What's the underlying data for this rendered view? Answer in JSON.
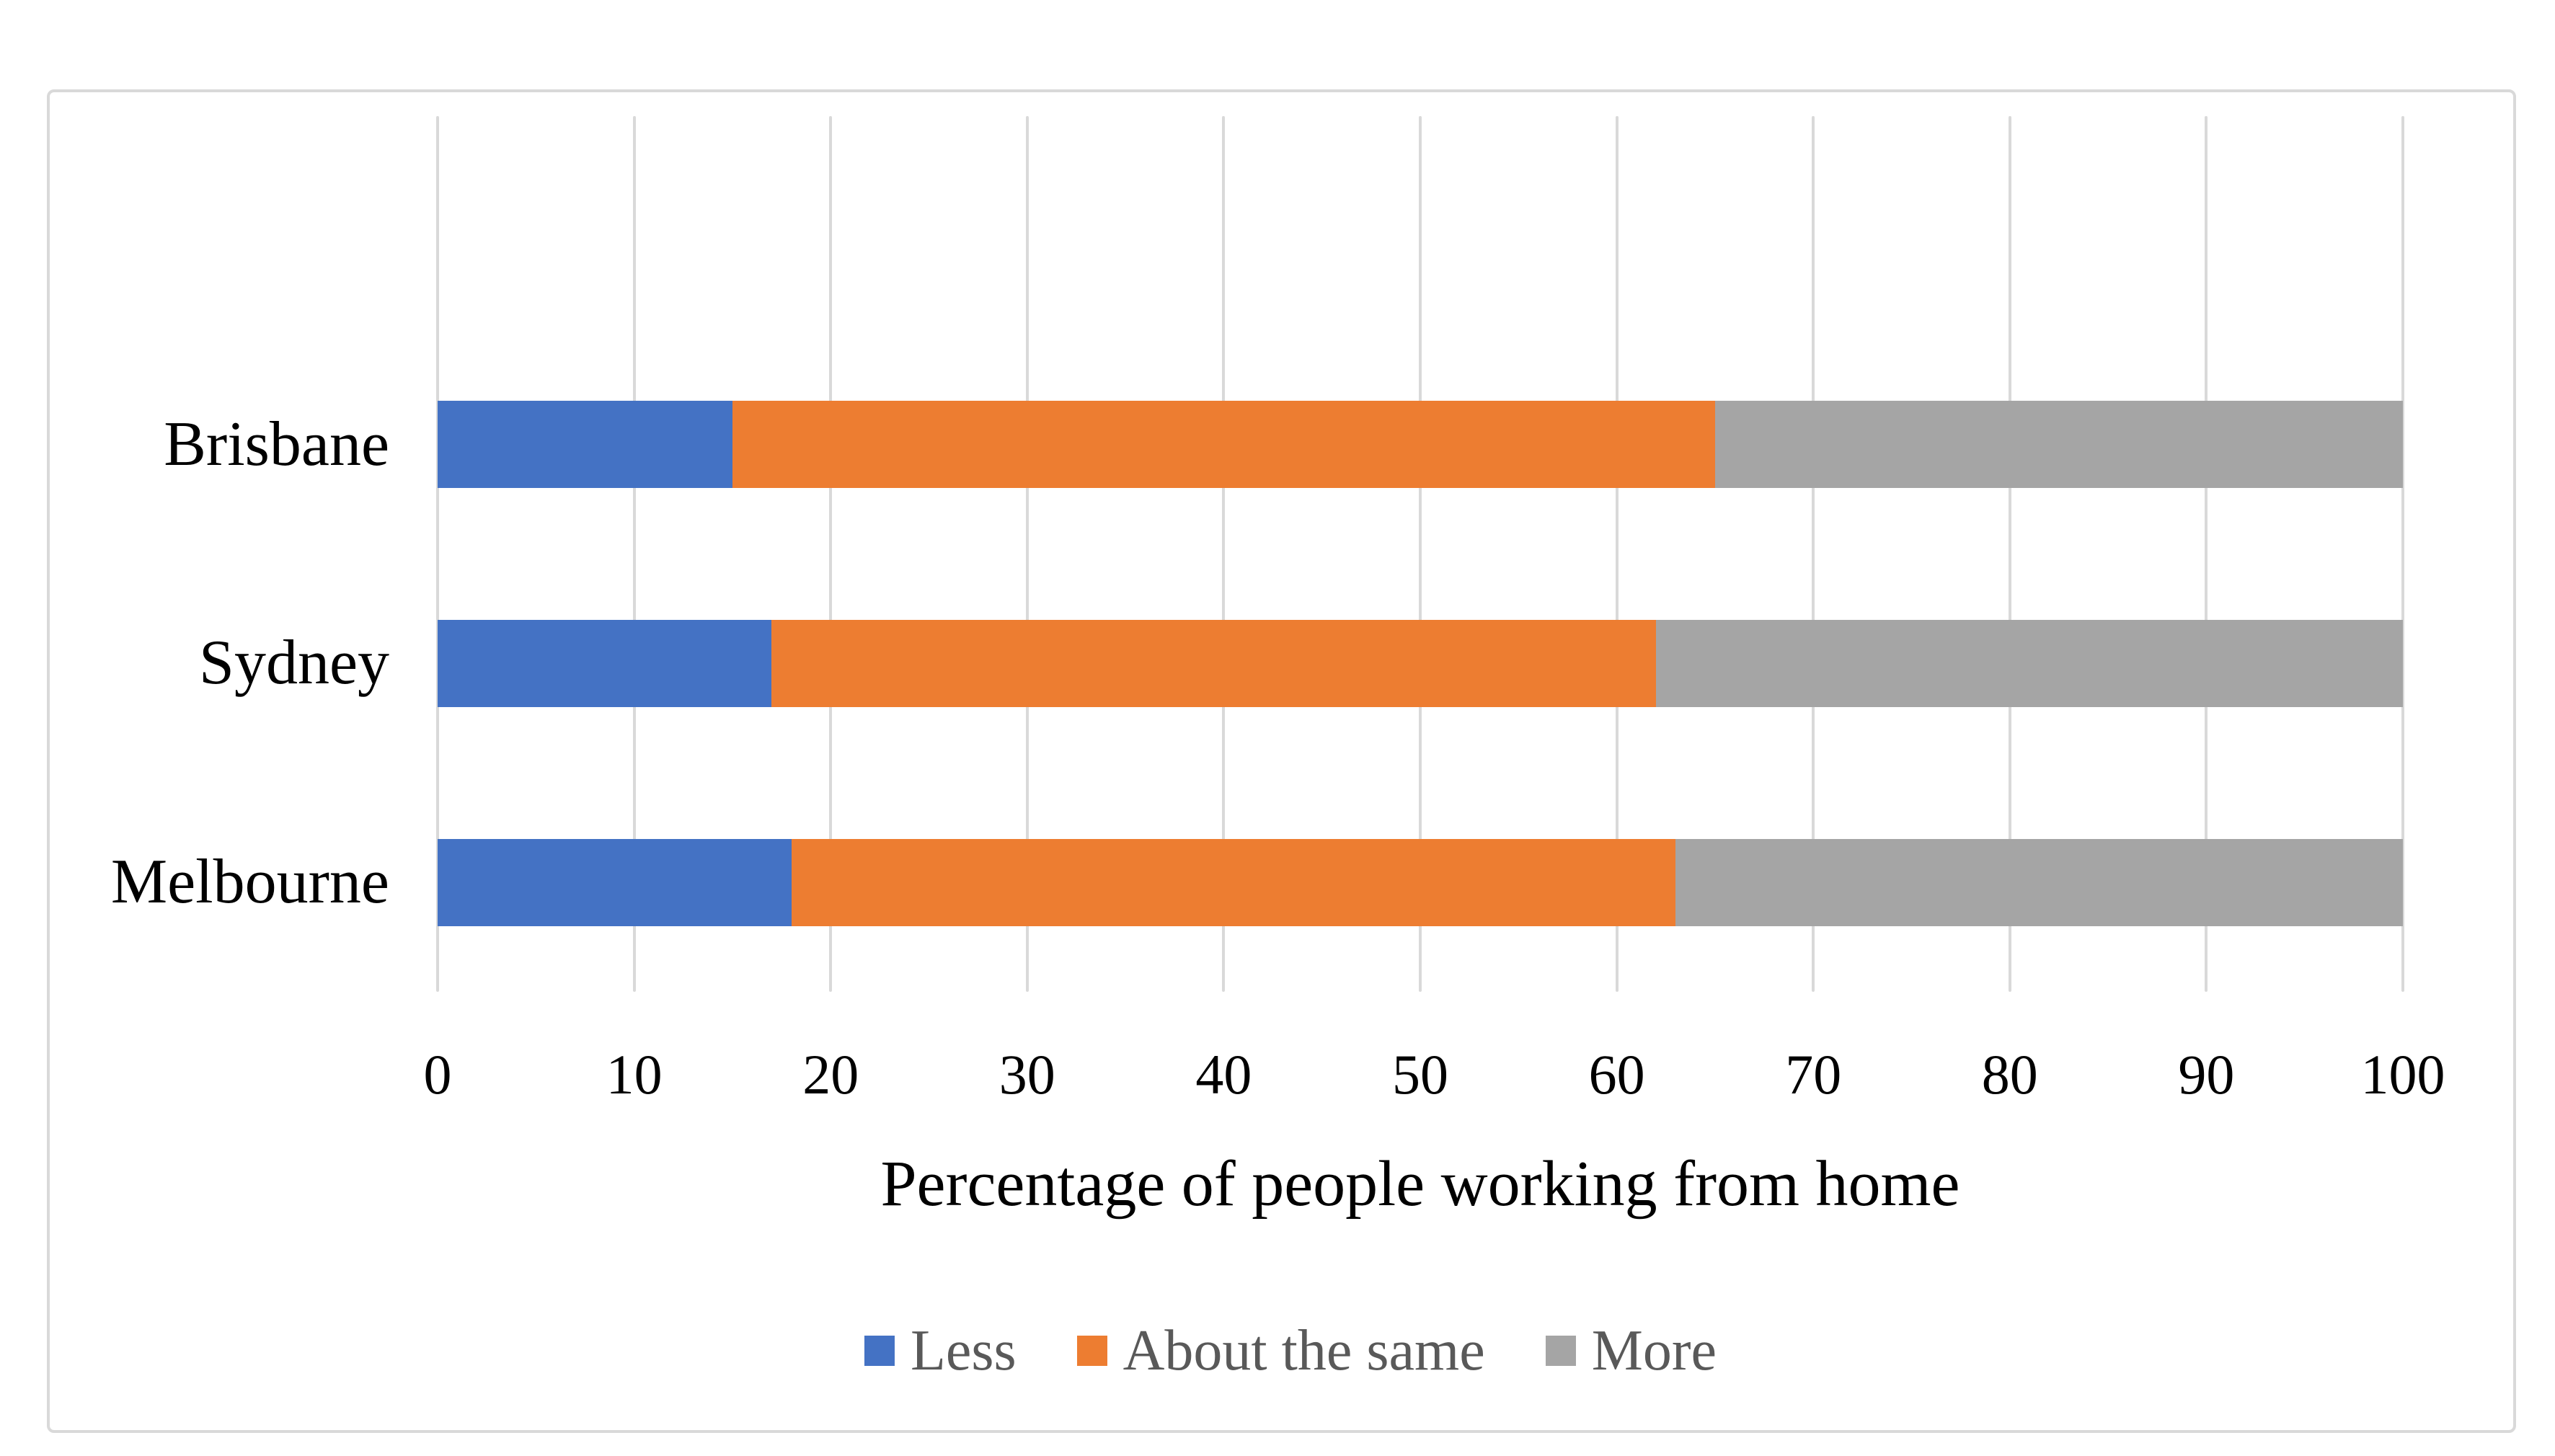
{
  "chart_data": {
    "type": "bar",
    "orientation": "horizontal-stacked",
    "title": "",
    "xlabel": "Percentage of people working from home",
    "ylabel": "",
    "xlim": [
      0,
      100
    ],
    "xticks": [
      0,
      10,
      20,
      30,
      40,
      50,
      60,
      70,
      80,
      90,
      100
    ],
    "grid": true,
    "legend_position": "bottom",
    "categories": [
      "Brisbane",
      "Sydney",
      "Melbourne"
    ],
    "series": [
      {
        "name": "Less",
        "color": "#4472C4",
        "values": [
          15,
          17,
          18
        ]
      },
      {
        "name": "About the same",
        "color": "#ED7D31",
        "values": [
          50,
          45,
          45
        ]
      },
      {
        "name": "More",
        "color": "#A5A5A5",
        "values": [
          35,
          38,
          37
        ]
      }
    ],
    "stacked_totals": [
      100,
      100,
      100
    ],
    "segment_boundaries": {
      "Brisbane": [
        15,
        65,
        100
      ],
      "Sydney": [
        17,
        62,
        100
      ],
      "Melbourne": [
        18,
        63,
        100
      ]
    },
    "empty_top_category_slot": true
  },
  "styles": {
    "background": "#FFFFFF",
    "frame_border": "#D9D9D9",
    "gridline": "#D9D9D9",
    "axis_text": "#000000",
    "legend_text": "#595959"
  }
}
